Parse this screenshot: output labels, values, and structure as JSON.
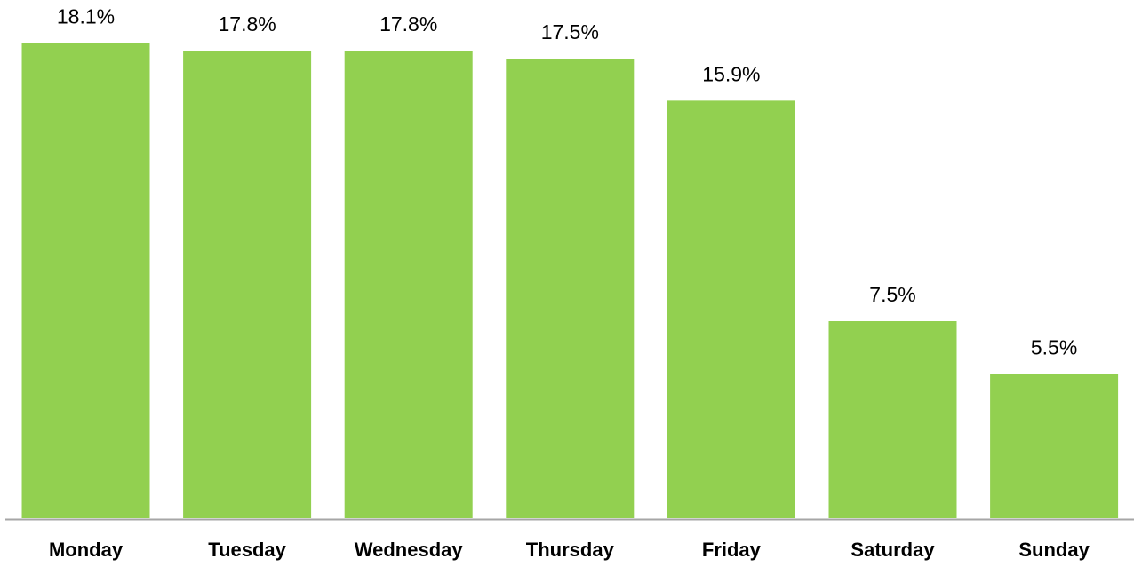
{
  "chart_data": {
    "type": "bar",
    "categories": [
      "Monday",
      "Tuesday",
      "Wednesday",
      "Thursday",
      "Friday",
      "Saturday",
      "Sunday"
    ],
    "values": [
      18.1,
      17.8,
      17.8,
      17.5,
      15.9,
      7.5,
      5.5
    ],
    "value_labels": [
      "18.1%",
      "17.8%",
      "17.8%",
      "17.5%",
      "15.9%",
      "7.5%",
      "5.5%"
    ],
    "color": "#92d050"
  }
}
